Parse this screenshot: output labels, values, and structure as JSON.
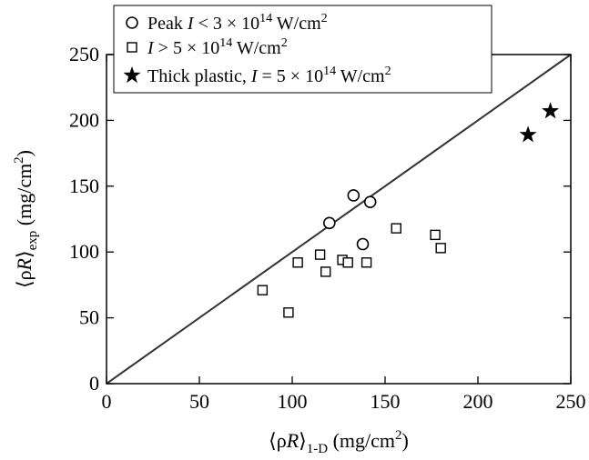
{
  "chart_data": {
    "type": "scatter",
    "xlabel": {
      "main": "⟨ρ",
      "italic": "R",
      "close": "⟩",
      "sub": "1-D",
      "unit_pre": " (mg/cm",
      "unit_sup": "2",
      "unit_post": ")"
    },
    "ylabel": {
      "main": "⟨ρ",
      "italic": "R",
      "close": "⟩",
      "sub": "exp",
      "unit_pre": " (mg/cm",
      "unit_sup": "2",
      "unit_post": ")"
    },
    "xlim": [
      0,
      250
    ],
    "ylim": [
      0,
      250
    ],
    "xticks": [
      0,
      50,
      100,
      150,
      200,
      250
    ],
    "yticks": [
      0,
      50,
      100,
      150,
      200,
      250
    ],
    "grid": false,
    "legend_position": "top-left",
    "reference_line": {
      "x": [
        0,
        250
      ],
      "y": [
        0,
        250
      ]
    },
    "series": [
      {
        "marker": "circle",
        "legend": {
          "pre": "Peak ",
          "var": "I",
          "mid": " < 3 × 10",
          "sup": "14",
          "post": " W/cm",
          "sup2": "2"
        },
        "points": [
          [
            120,
            122
          ],
          [
            133,
            143
          ],
          [
            142,
            138
          ],
          [
            138,
            106
          ]
        ]
      },
      {
        "marker": "square",
        "legend": {
          "pre": "",
          "var": "I",
          "mid": " > 5 × 10",
          "sup": "14",
          "post": " W/cm",
          "sup2": "2"
        },
        "points": [
          [
            84,
            71
          ],
          [
            98,
            54
          ],
          [
            103,
            92
          ],
          [
            115,
            98
          ],
          [
            118,
            85
          ],
          [
            127,
            94
          ],
          [
            130,
            92
          ],
          [
            140,
            92
          ],
          [
            156,
            118
          ],
          [
            177,
            113
          ],
          [
            180,
            103
          ]
        ]
      },
      {
        "marker": "star",
        "legend": {
          "pre": "Thick plastic, ",
          "var": "I",
          "mid": " = 5 × 10",
          "sup": "14",
          "post": " W/cm",
          "sup2": "2"
        },
        "points": [
          [
            227,
            189
          ],
          [
            239,
            207
          ]
        ]
      }
    ]
  }
}
